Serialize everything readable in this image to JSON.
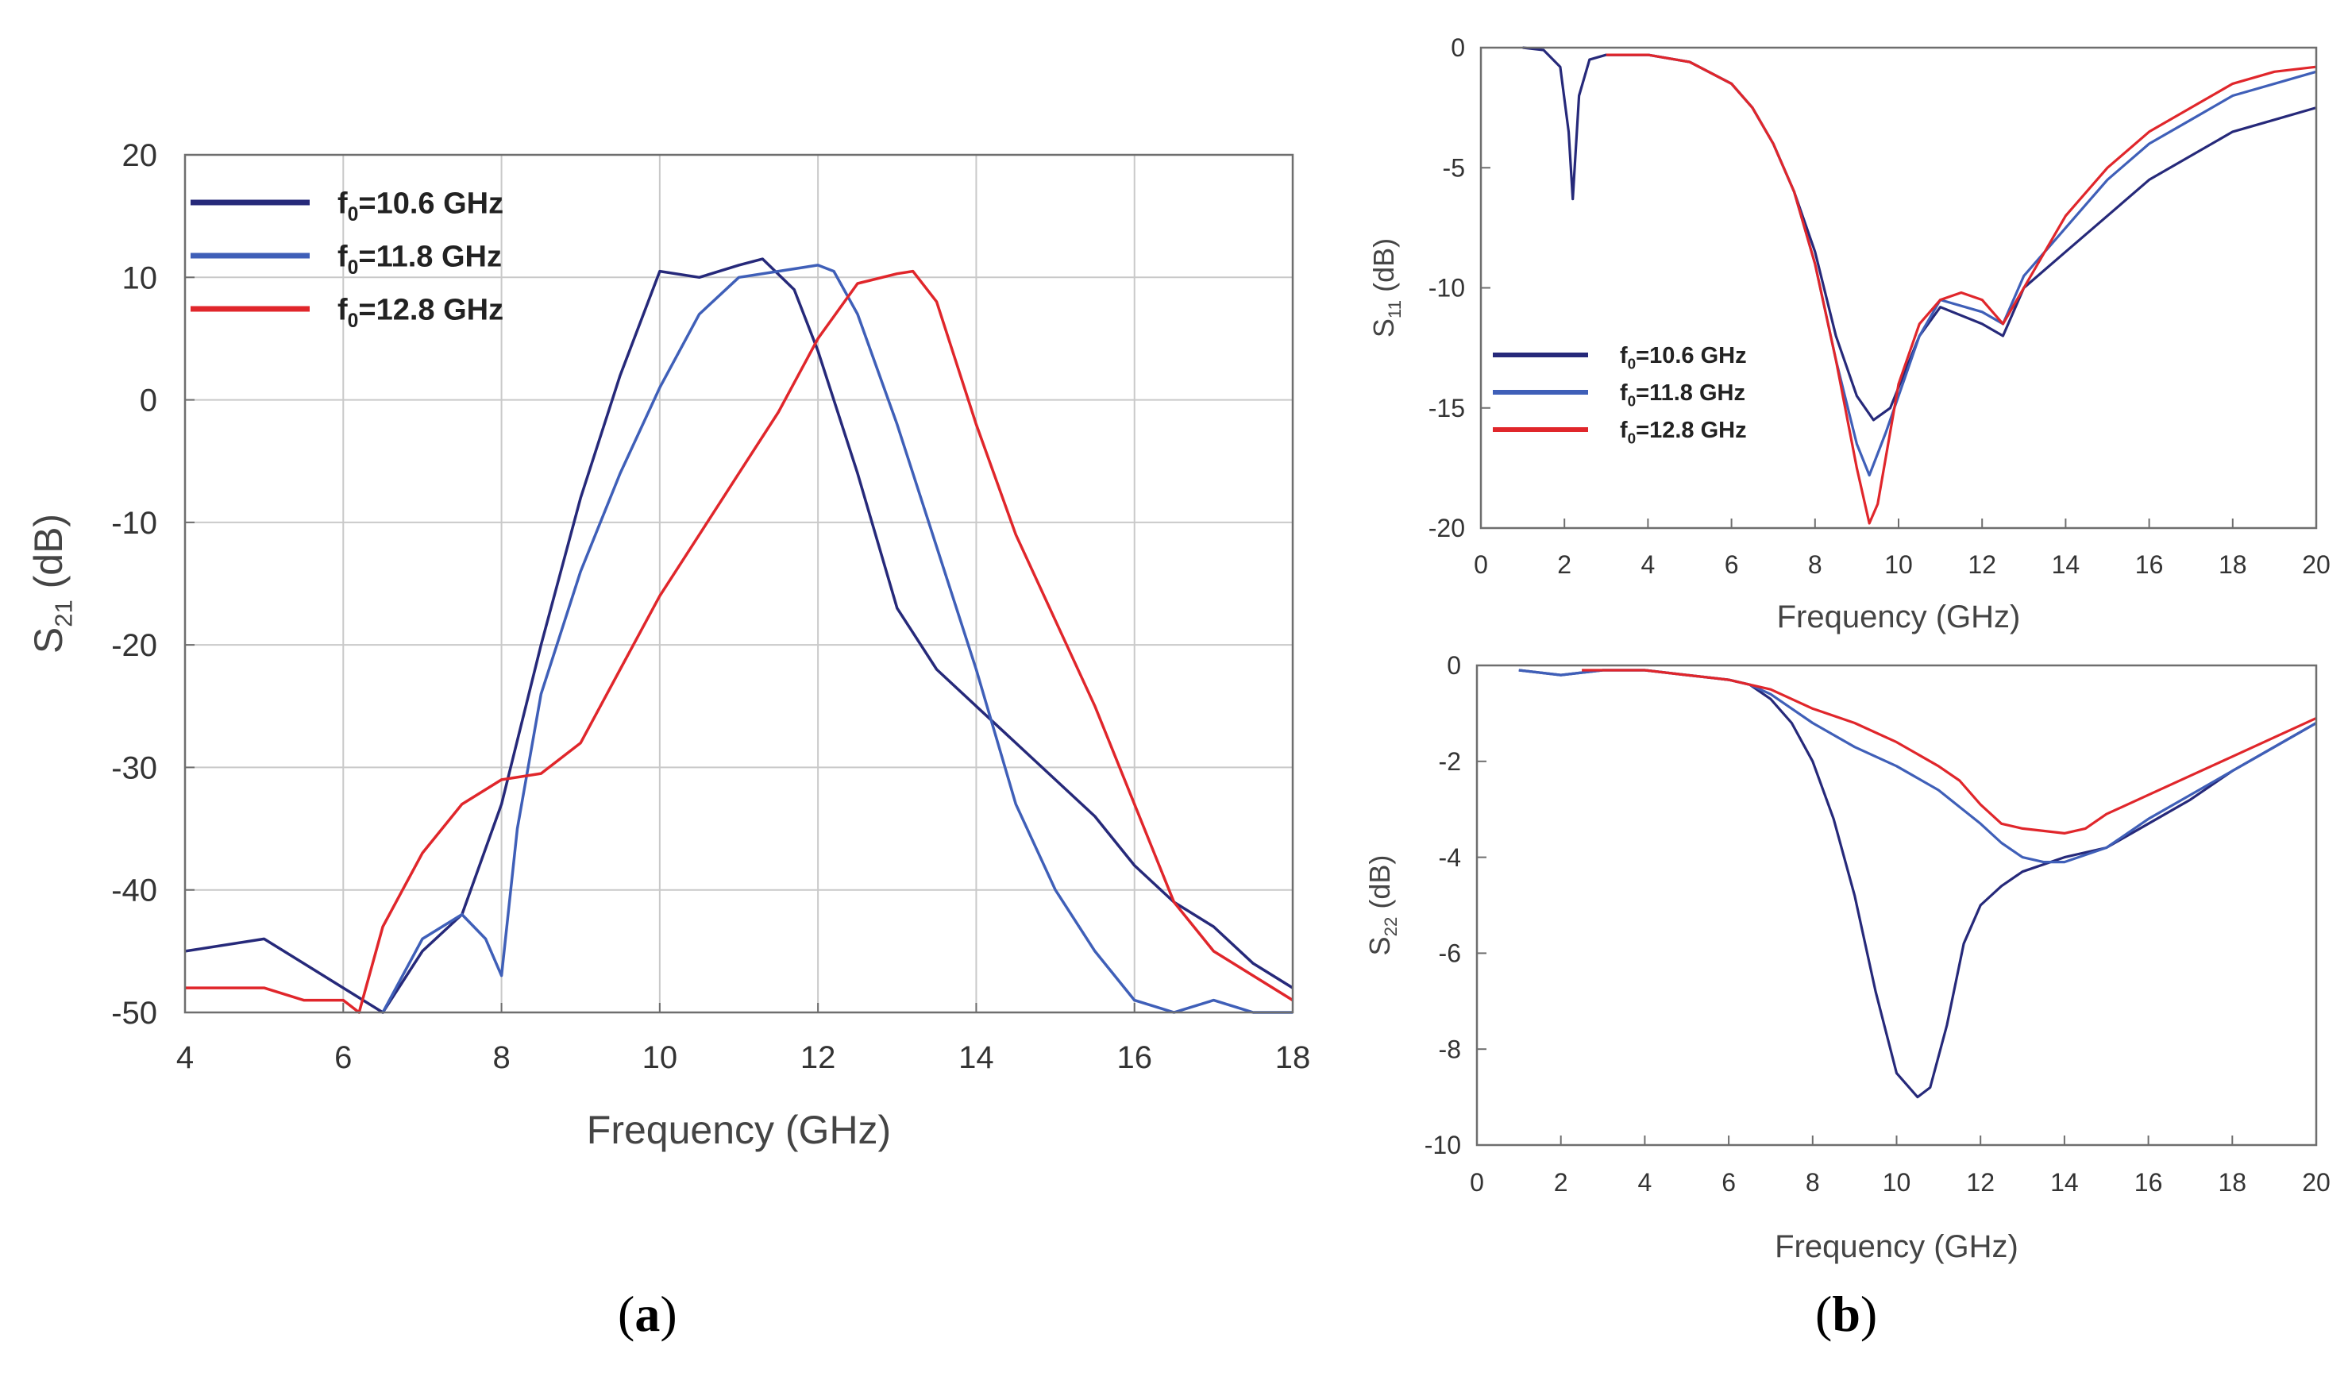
{
  "panels": {
    "a": {
      "label_open": "(",
      "label_letter": "a",
      "label_close": ")"
    },
    "b": {
      "label_open": "(",
      "label_letter": "b",
      "label_close": ")"
    }
  },
  "colors": {
    "dark_blue": "#26297a",
    "blue": "#3f5fb8",
    "red": "#e0262b",
    "grid": "#c9c9c9",
    "frame": "#6e6e6e"
  },
  "legend_labels": {
    "s1": {
      "prefix": "f",
      "sub": "0",
      "text": "=10.6 GHz"
    },
    "s2": {
      "prefix": "f",
      "sub": "0",
      "text": "=11.8 GHz"
    },
    "s3": {
      "prefix": "f",
      "sub": "0",
      "text": "=12.8 GHz"
    }
  },
  "chart_data": [
    {
      "id": "a",
      "type": "line",
      "xlabel": "Frequency (GHz)",
      "ylabel_main": "S",
      "ylabel_sub": "21",
      "ylabel_unit": " (dB)",
      "xlim": [
        4,
        18
      ],
      "ylim": [
        -50,
        20
      ],
      "xticks": [
        4,
        6,
        8,
        10,
        12,
        14,
        16,
        18
      ],
      "yticks": [
        -50,
        -40,
        -30,
        -20,
        -10,
        0,
        10,
        20
      ],
      "grid": true,
      "legend_position": "top-left",
      "series": [
        {
          "name": "f0=10.6 GHz",
          "color": "#26297a",
          "x": [
            4,
            5,
            6,
            6.5,
            7,
            7.5,
            8,
            8.5,
            9,
            9.5,
            10,
            10.5,
            11,
            11.3,
            11.7,
            12,
            12.5,
            13,
            13.5,
            14,
            15,
            15.5,
            16,
            16.5,
            17,
            17.5,
            18
          ],
          "y": [
            -45,
            -44,
            -48,
            -50,
            -45,
            -42,
            -33,
            -20,
            -8,
            2,
            10.5,
            10,
            11,
            11.5,
            9,
            4,
            -6,
            -17,
            -22,
            -25,
            -31,
            -34,
            -38,
            -41,
            -43,
            -46,
            -48
          ]
        },
        {
          "name": "f0=11.8 GHz",
          "color": "#3f5fb8",
          "x": [
            6.5,
            7,
            7.5,
            7.8,
            8,
            8.2,
            8.5,
            9,
            9.5,
            10,
            10.5,
            11,
            11.5,
            12,
            12.2,
            12.5,
            13,
            13.5,
            14,
            14.5,
            15,
            15.5,
            16,
            16.5,
            17,
            17.5,
            18
          ],
          "y": [
            -50,
            -44,
            -42,
            -44,
            -47,
            -35,
            -24,
            -14,
            -6,
            1,
            7,
            10,
            10.5,
            11,
            10.5,
            7,
            -2,
            -12,
            -22,
            -33,
            -40,
            -45,
            -49,
            -50,
            -49,
            -50,
            -50
          ]
        },
        {
          "name": "f0=12.8 GHz",
          "color": "#e0262b",
          "x": [
            4,
            5,
            5.5,
            6,
            6.2,
            6.5,
            7,
            7.5,
            8,
            8.5,
            9,
            9.5,
            10,
            10.5,
            11,
            11.5,
            12,
            12.5,
            13,
            13.2,
            13.5,
            14,
            14.5,
            15,
            15.5,
            16,
            16.5,
            17,
            17.5,
            18
          ],
          "y": [
            -48,
            -48,
            -49,
            -49,
            -50,
            -43,
            -37,
            -33,
            -31,
            -30.5,
            -28,
            -22,
            -16,
            -11,
            -6,
            -1,
            5,
            9.5,
            10.3,
            10.5,
            8,
            -2,
            -11,
            -18,
            -25,
            -33,
            -41,
            -45,
            -47,
            -49
          ]
        }
      ]
    },
    {
      "id": "b1",
      "type": "line",
      "xlabel": "Frequency (GHz)",
      "ylabel_main": "S",
      "ylabel_sub": "11",
      "ylabel_unit": " (dB)",
      "xlim": [
        0,
        20
      ],
      "ylim": [
        -20,
        0
      ],
      "xticks": [
        0,
        2,
        4,
        6,
        8,
        10,
        12,
        14,
        16,
        18,
        20
      ],
      "yticks": [
        -20,
        -15,
        -10,
        -5,
        0
      ],
      "grid": false,
      "legend_position": "middle-left",
      "series": [
        {
          "name": "f0=10.6 GHz",
          "color": "#26297a",
          "x": [
            1,
            1.5,
            1.9,
            2.1,
            2.2,
            2.35,
            2.6,
            3,
            4,
            5,
            6,
            6.5,
            7,
            7.5,
            8,
            8.5,
            9,
            9.4,
            9.8,
            10.5,
            11,
            12,
            12.5,
            13,
            14,
            15,
            16,
            17,
            18,
            19,
            20
          ],
          "y": [
            0,
            -0.1,
            -0.8,
            -3.5,
            -6.3,
            -2,
            -0.5,
            -0.3,
            -0.3,
            -0.6,
            -1.5,
            -2.5,
            -4,
            -6,
            -8.5,
            -12,
            -14.5,
            -15.5,
            -15,
            -12,
            -10.8,
            -11.5,
            -12,
            -10,
            -8.5,
            -7,
            -5.5,
            -4.5,
            -3.5,
            -3,
            -2.5
          ]
        },
        {
          "name": "f0=11.8 GHz",
          "color": "#3f5fb8",
          "x": [
            3,
            4,
            5,
            6,
            6.5,
            7,
            7.5,
            8,
            8.5,
            9,
            9.3,
            9.7,
            10.5,
            11,
            12,
            12.5,
            13,
            14,
            15,
            16,
            17,
            18,
            19,
            20
          ],
          "y": [
            -0.3,
            -0.3,
            -0.6,
            -1.5,
            -2.5,
            -4,
            -6,
            -9,
            -13,
            -16.5,
            -17.8,
            -16,
            -12,
            -10.5,
            -11,
            -11.5,
            -9.5,
            -7.5,
            -5.5,
            -4,
            -3,
            -2,
            -1.5,
            -1
          ]
        },
        {
          "name": "f0=12.8 GHz",
          "color": "#e0262b",
          "x": [
            3,
            4,
            5,
            6,
            6.5,
            7,
            7.5,
            8,
            8.5,
            9,
            9.3,
            9.5,
            10,
            10.5,
            11,
            11.5,
            12,
            12.5,
            13,
            14,
            15,
            16,
            17,
            18,
            19,
            20
          ],
          "y": [
            -0.3,
            -0.3,
            -0.6,
            -1.5,
            -2.5,
            -4,
            -6,
            -9,
            -13,
            -17.5,
            -19.8,
            -19,
            -14,
            -11.5,
            -10.5,
            -10.2,
            -10.5,
            -11.5,
            -10,
            -7,
            -5,
            -3.5,
            -2.5,
            -1.5,
            -1,
            -0.8
          ]
        }
      ]
    },
    {
      "id": "b2",
      "type": "line",
      "xlabel": "Frequency (GHz)",
      "ylabel_main": "S",
      "ylabel_sub": "22",
      "ylabel_unit": " (dB)",
      "xlim": [
        0,
        20
      ],
      "ylim": [
        -10,
        0
      ],
      "xticks": [
        0,
        2,
        4,
        6,
        8,
        10,
        12,
        14,
        16,
        18,
        20
      ],
      "yticks": [
        -10,
        -8,
        -6,
        -4,
        -2,
        0
      ],
      "grid": false,
      "legend_position": "none",
      "series": [
        {
          "name": "f0=10.6 GHz",
          "color": "#26297a",
          "x": [
            1,
            2,
            3,
            4,
            5,
            6,
            6.5,
            7,
            7.5,
            8,
            8.5,
            9,
            9.5,
            10,
            10.5,
            10.8,
            11.2,
            11.6,
            12,
            12.5,
            13,
            14,
            15,
            16,
            17,
            18,
            19,
            20
          ],
          "y": [
            -0.1,
            -0.2,
            -0.1,
            -0.1,
            -0.2,
            -0.3,
            -0.4,
            -0.7,
            -1.2,
            -2,
            -3.2,
            -4.8,
            -6.8,
            -8.5,
            -9,
            -8.8,
            -7.5,
            -5.8,
            -5,
            -4.6,
            -4.3,
            -4,
            -3.8,
            -3.3,
            -2.8,
            -2.2,
            -1.7,
            -1.2
          ]
        },
        {
          "name": "f0=11.8 GHz",
          "color": "#3f5fb8",
          "x": [
            1,
            2,
            3,
            4,
            5,
            6,
            6.5,
            7,
            8,
            9,
            10,
            11,
            12,
            12.5,
            13,
            13.5,
            14,
            15,
            16,
            17,
            18,
            19,
            20
          ],
          "y": [
            -0.1,
            -0.2,
            -0.1,
            -0.1,
            -0.2,
            -0.3,
            -0.4,
            -0.6,
            -1.2,
            -1.7,
            -2.1,
            -2.6,
            -3.3,
            -3.7,
            -4,
            -4.1,
            -4.1,
            -3.8,
            -3.2,
            -2.7,
            -2.2,
            -1.7,
            -1.2
          ]
        },
        {
          "name": "f0=12.8 GHz",
          "color": "#e0262b",
          "x": [
            2.5,
            3,
            4,
            5,
            6,
            6.5,
            7,
            8,
            9,
            10,
            11,
            11.5,
            12,
            12.5,
            13,
            14,
            14.5,
            15,
            16,
            17,
            18,
            19,
            20
          ],
          "y": [
            -0.1,
            -0.1,
            -0.1,
            -0.2,
            -0.3,
            -0.4,
            -0.5,
            -0.9,
            -1.2,
            -1.6,
            -2.1,
            -2.4,
            -2.9,
            -3.3,
            -3.4,
            -3.5,
            -3.4,
            -3.1,
            -2.7,
            -2.3,
            -1.9,
            -1.5,
            -1.1
          ]
        }
      ]
    }
  ]
}
